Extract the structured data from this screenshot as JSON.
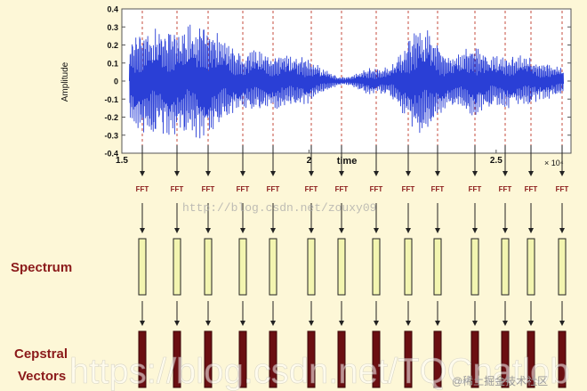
{
  "waveform_plot": {
    "ylabel": "Amplitude",
    "xlabel": "time",
    "x_ticks": [
      "1.5",
      "2",
      "2.5"
    ],
    "x_exponent": "× 10⁴",
    "y_ticks": [
      "0.4",
      "0.3",
      "0.2",
      "0.1",
      "0",
      "-0.1",
      "-0.2",
      "-0.3",
      "-0.4"
    ],
    "xlim": [
      1.5,
      2.7
    ],
    "ylim": [
      -0.4,
      0.4
    ],
    "signal_color": "#2a3fd6"
  },
  "fft_label": "FFT",
  "frame_count": 14,
  "row_labels": {
    "spectrum": "Spectrum",
    "cepstral_line1": "Cepstral",
    "cepstral_line2": "Vectors"
  },
  "colors": {
    "background": "#fdf7d7",
    "fft_text": "#8b1a1a",
    "spectrum_fill": "#f3f5b0",
    "cepstral_fill": "#6b0f12",
    "label_text": "#8b1a1a",
    "frame_divider": "#c0392b"
  },
  "watermarks": {
    "center": "http://blog.csdn.net/zouxy09",
    "bottom_large": "https://blog.csdn.net/TQCnatlob",
    "corner": "@稀土掘金技术社区"
  }
}
